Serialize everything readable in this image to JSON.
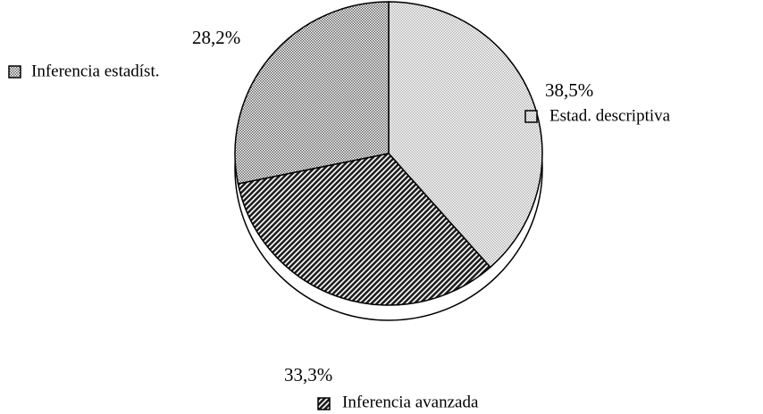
{
  "chart_data": {
    "type": "pie",
    "categories": [
      "Estad. descriptiva",
      "Inferencia avanzada",
      "Inferencia estadíst."
    ],
    "values": [
      38.5,
      33.3,
      28.2
    ],
    "value_labels": [
      "38,5%",
      "33,3%",
      "28,2%"
    ],
    "colors": [
      "#b0b0b0",
      "#202020",
      "#606060"
    ],
    "patterns": [
      "dots",
      "hatch",
      "dots"
    ]
  }
}
